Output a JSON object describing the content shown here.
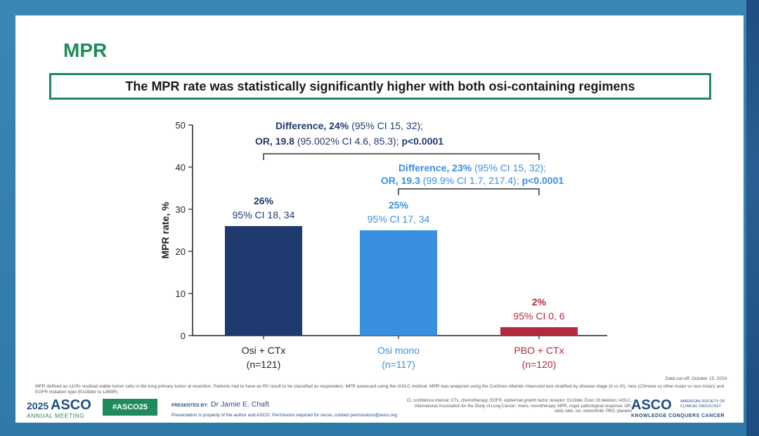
{
  "slide": {
    "title": "MPR",
    "key_message": "The MPR rate was statistically significantly higher with both osi-containing regimens",
    "footnote": "MPR defined as ≤10% residual viable tumor cells in the lung primary tumor at resection. Patients had to have an R0 result to be classified as responders. MPR assessed using the IASLC method. MPR was analyzed using the Cochran–Mantel–Haenszel test stratified by disease stage (II vs III), race (Chinese vs other Asian vs non-Asian) and EGFR mutation type (Ex19del vs L858R)",
    "data_cutoff": "Data cut-off: October 15, 2024."
  },
  "chart_data": {
    "type": "bar",
    "ylabel": "MPR rate, %",
    "ylim": [
      0,
      50
    ],
    "yticks": [
      0,
      10,
      20,
      30,
      40,
      50
    ],
    "categories": [
      {
        "name": "Osi + CTx",
        "n": "(n=121)",
        "value": 26,
        "label": "26%",
        "ci": "95% CI 18, 34",
        "color": "#1f3a6e",
        "label_color": "#1f3a6e"
      },
      {
        "name": "Osi mono",
        "n": "(n=117)",
        "value": 25,
        "label": "25%",
        "ci": "95% CI 17, 34",
        "color": "#3b8fe0",
        "label_color": "#3b8fe0"
      },
      {
        "name": "PBO + CTx",
        "n": "(n=120)",
        "value": 2,
        "label": "2%",
        "ci": "95% CI 0, 6",
        "color": "#b22b3d",
        "label_color": "#b22b3d"
      }
    ],
    "comparisons": [
      {
        "from": 0,
        "to": 2,
        "line1_bold": "Difference, 24%",
        "line1_rest": " (95% CI 15, 32);",
        "line2_bold": "OR, 19.8",
        "line2_rest": " (95.002% CI 4.6, 85.3); ",
        "p": "p<0.0001",
        "color": "#1f3a6e"
      },
      {
        "from": 1,
        "to": 2,
        "line1_bold": "Difference, 23%",
        "line1_rest": " (95% CI 15, 32);",
        "line2_bold": "OR, 19.3",
        "line2_rest": " (99.9% CI 1.7, 217.4); ",
        "p": "p<0.0001",
        "color": "#3b8fe0"
      }
    ]
  },
  "footer": {
    "year": "2025",
    "logo": "ASCO",
    "meeting": "ANNUAL MEETING",
    "hashtag": "#ASCO25",
    "presented_by_label": "PRESENTED BY:",
    "presenter": "Dr Jamie E. Chaft",
    "property": "Presentation is property of the author and ASCO. Permission required for reuse; contact permissions@asco.org.",
    "abbreviations": "CI, confidence interval; CTx, chemotherapy; EGFR, epidermal growth factor receptor; Ex19del, Exon 19 deletion; IASLC, International Association for the Study of Lung Cancer; mono, monotherapy; MPR, major pathological response; OR, odds ratio; osi, osimertinib; PBO, placebo",
    "society_logo": "ASCO",
    "society_name": "AMERICAN SOCIETY OF CLINICAL ONCOLOGY",
    "society_tagline": "KNOWLEDGE CONQUERS CANCER"
  }
}
